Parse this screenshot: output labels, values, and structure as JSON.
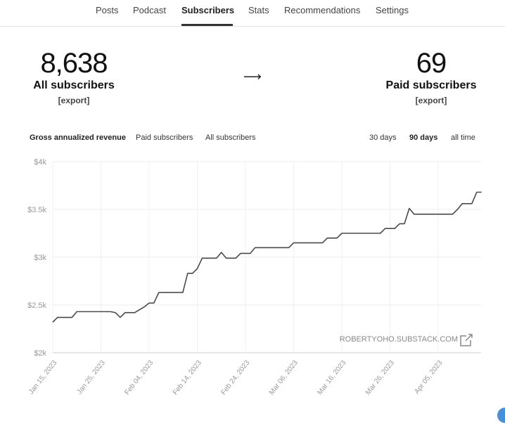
{
  "nav": {
    "items": [
      {
        "label": "Posts",
        "active": false
      },
      {
        "label": "Podcast",
        "active": false
      },
      {
        "label": "Subscribers",
        "active": true
      },
      {
        "label": "Stats",
        "active": false
      },
      {
        "label": "Recommendations",
        "active": false
      },
      {
        "label": "Settings",
        "active": false
      }
    ]
  },
  "summary": {
    "all_count": "8,638",
    "all_label": "All subscribers",
    "all_export": "[export]",
    "arrow": "⟶",
    "paid_count": "69",
    "paid_label": "Paid subscribers",
    "paid_export": "[export]"
  },
  "metric_tabs": {
    "gross": "Gross annualized revenue",
    "paid": "Paid subscribers",
    "all": "All subscribers",
    "active": "gross"
  },
  "range_tabs": {
    "d30": "30 days",
    "d90": "90 days",
    "all": "all time",
    "active": "d90"
  },
  "watermark": {
    "text": "ROBERTYOHO.SUBSTACK.COM",
    "icon": "external-link-icon"
  },
  "chart_data": {
    "type": "line",
    "series_color": "#4a4a4a",
    "grid": true,
    "ylim": [
      2000,
      4000
    ],
    "yticks": [
      2000,
      2500,
      3000,
      3500,
      4000
    ],
    "ytick_labels": [
      "$2k",
      "$2.5k",
      "$3k",
      "$3.5k",
      "$4k"
    ],
    "xtick_labels": [
      "Jan 15, 2023",
      "Jan 25, 2023",
      "Feb 04, 2023",
      "Feb 14, 2023",
      "Feb 24, 2023",
      "Mar 06, 2023",
      "Mar 16, 2023",
      "Mar 26, 2023",
      "Apr 05, 2023"
    ],
    "x_start_date": "Jan 15, 2023",
    "x_end_date": "Apr 13, 2023",
    "points": [
      [
        "2023-01-15",
        2320
      ],
      [
        "2023-01-16",
        2370
      ],
      [
        "2023-01-18",
        2370
      ],
      [
        "2023-01-19",
        2370
      ],
      [
        "2023-01-20",
        2430
      ],
      [
        "2023-01-23",
        2430
      ],
      [
        "2023-01-27",
        2430
      ],
      [
        "2023-01-28",
        2420
      ],
      [
        "2023-01-29",
        2370
      ],
      [
        "2023-01-30",
        2420
      ],
      [
        "2023-02-01",
        2420
      ],
      [
        "2023-02-03",
        2480
      ],
      [
        "2023-02-04",
        2520
      ],
      [
        "2023-02-05",
        2520
      ],
      [
        "2023-02-06",
        2630
      ],
      [
        "2023-02-11",
        2630
      ],
      [
        "2023-02-12",
        2830
      ],
      [
        "2023-02-13",
        2830
      ],
      [
        "2023-02-14",
        2880
      ],
      [
        "2023-02-15",
        2990
      ],
      [
        "2023-02-18",
        2990
      ],
      [
        "2023-02-19",
        3050
      ],
      [
        "2023-02-20",
        2990
      ],
      [
        "2023-02-22",
        2990
      ],
      [
        "2023-02-23",
        3040
      ],
      [
        "2023-02-25",
        3040
      ],
      [
        "2023-02-26",
        3100
      ],
      [
        "2023-03-05",
        3100
      ],
      [
        "2023-03-06",
        3150
      ],
      [
        "2023-03-12",
        3150
      ],
      [
        "2023-03-13",
        3200
      ],
      [
        "2023-03-15",
        3200
      ],
      [
        "2023-03-16",
        3250
      ],
      [
        "2023-03-24",
        3250
      ],
      [
        "2023-03-25",
        3300
      ],
      [
        "2023-03-27",
        3300
      ],
      [
        "2023-03-28",
        3350
      ],
      [
        "2023-03-29",
        3350
      ],
      [
        "2023-03-30",
        3510
      ],
      [
        "2023-03-31",
        3450
      ],
      [
        "2023-04-03",
        3450
      ],
      [
        "2023-04-08",
        3450
      ],
      [
        "2023-04-09",
        3500
      ],
      [
        "2023-04-10",
        3560
      ],
      [
        "2023-04-11",
        3560
      ],
      [
        "2023-04-12",
        3560
      ],
      [
        "2023-04-13",
        3680
      ],
      [
        "2023-04-14",
        3680
      ]
    ]
  }
}
